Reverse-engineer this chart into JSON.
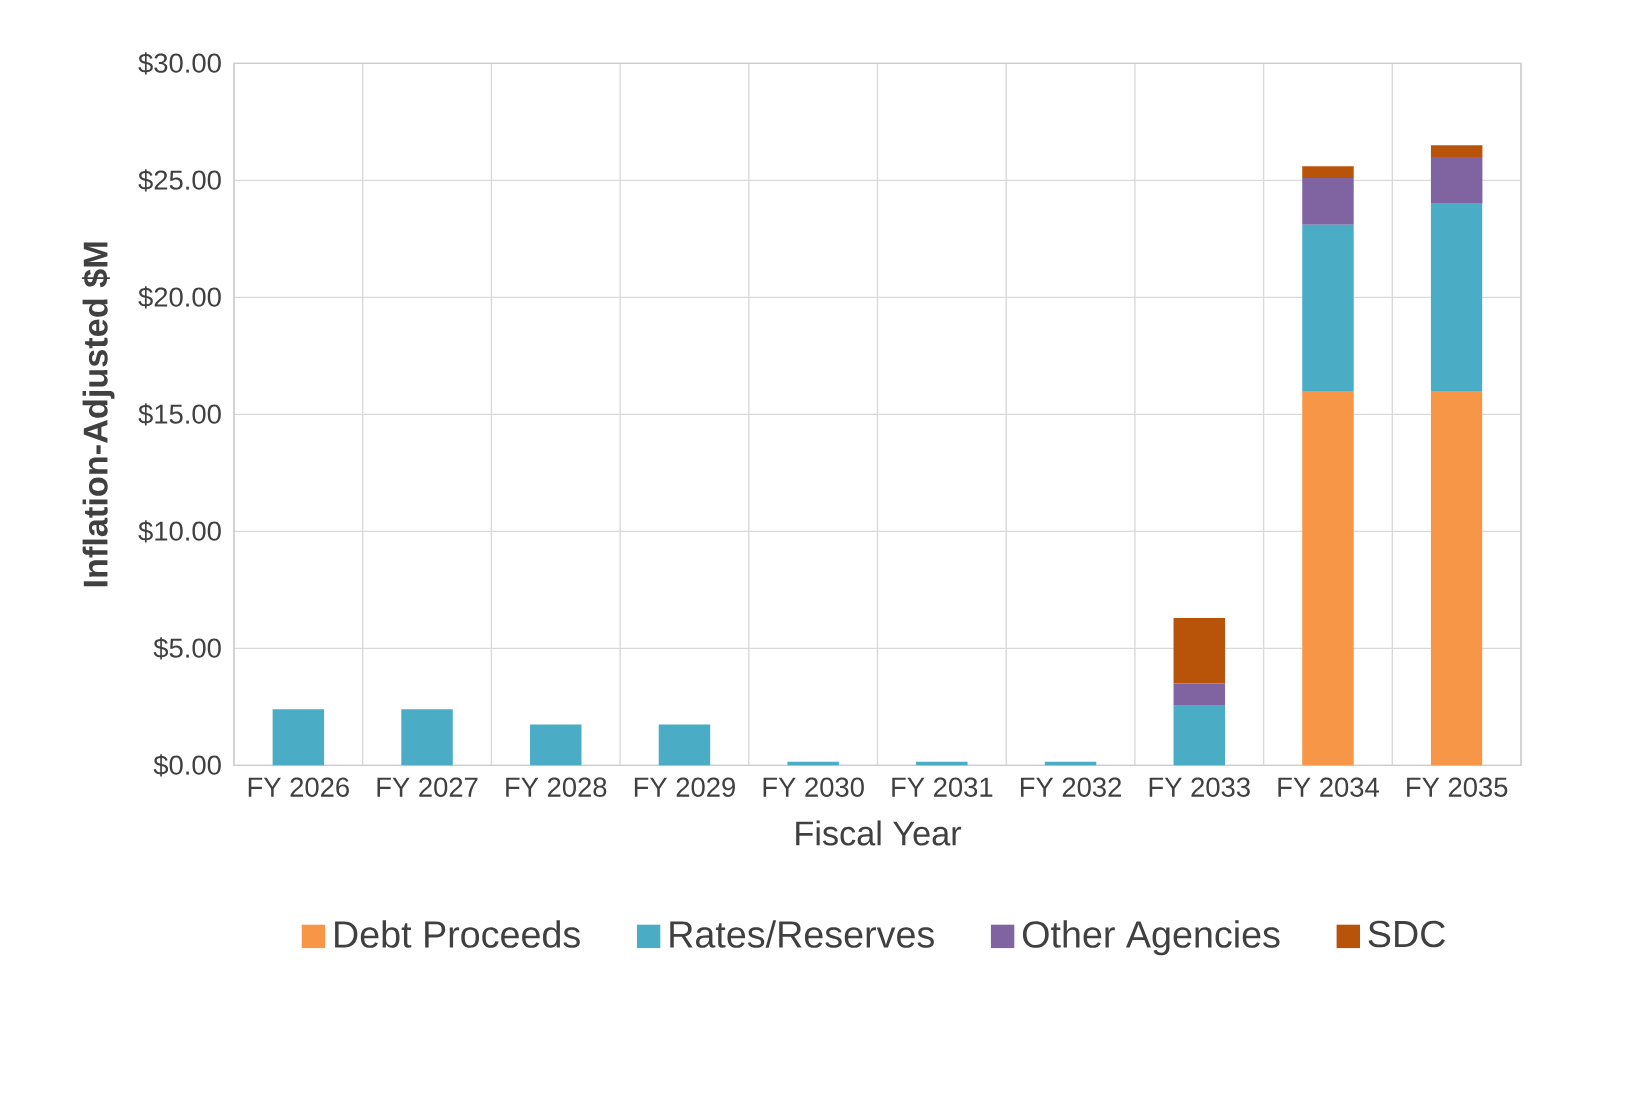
{
  "chart_data": {
    "type": "bar",
    "stacked": true,
    "xlabel": "Fiscal Year",
    "ylabel": "Inflation-Adjusted $M",
    "categories": [
      "FY 2026",
      "FY 2027",
      "FY 2028",
      "FY 2029",
      "FY 2030",
      "FY 2031",
      "FY 2032",
      "FY 2033",
      "FY 2034",
      "FY 2035"
    ],
    "series": [
      {
        "name": "Debt Proceeds",
        "color": "#f79646",
        "values": [
          0,
          0,
          0,
          0,
          0,
          0,
          0,
          0,
          16.0,
          16.0
        ]
      },
      {
        "name": "Rates/Reserves",
        "color": "#4bacc6",
        "values": [
          2.4,
          2.4,
          1.75,
          1.75,
          0.15,
          0.15,
          0.15,
          2.55,
          7.1,
          8.0
        ]
      },
      {
        "name": "Other Agencies",
        "color": "#8064a2",
        "values": [
          0,
          0,
          0,
          0,
          0,
          0,
          0,
          0.95,
          2.0,
          2.0
        ]
      },
      {
        "name": "SDC",
        "color": "#b7540a",
        "values": [
          0,
          0,
          0,
          0,
          0,
          0,
          0,
          2.8,
          0.5,
          0.5
        ]
      }
    ],
    "ylim": [
      0,
      30
    ],
    "yticks": [
      {
        "value": 0,
        "label": "$0.00"
      },
      {
        "value": 5,
        "label": "$5.00"
      },
      {
        "value": 10,
        "label": "$10.00"
      },
      {
        "value": 15,
        "label": "$15.00"
      },
      {
        "value": 20,
        "label": "$20.00"
      },
      {
        "value": 25,
        "label": "$25.00"
      },
      {
        "value": 30,
        "label": "$30.00"
      }
    ],
    "grid": true,
    "legend": "bottom"
  }
}
